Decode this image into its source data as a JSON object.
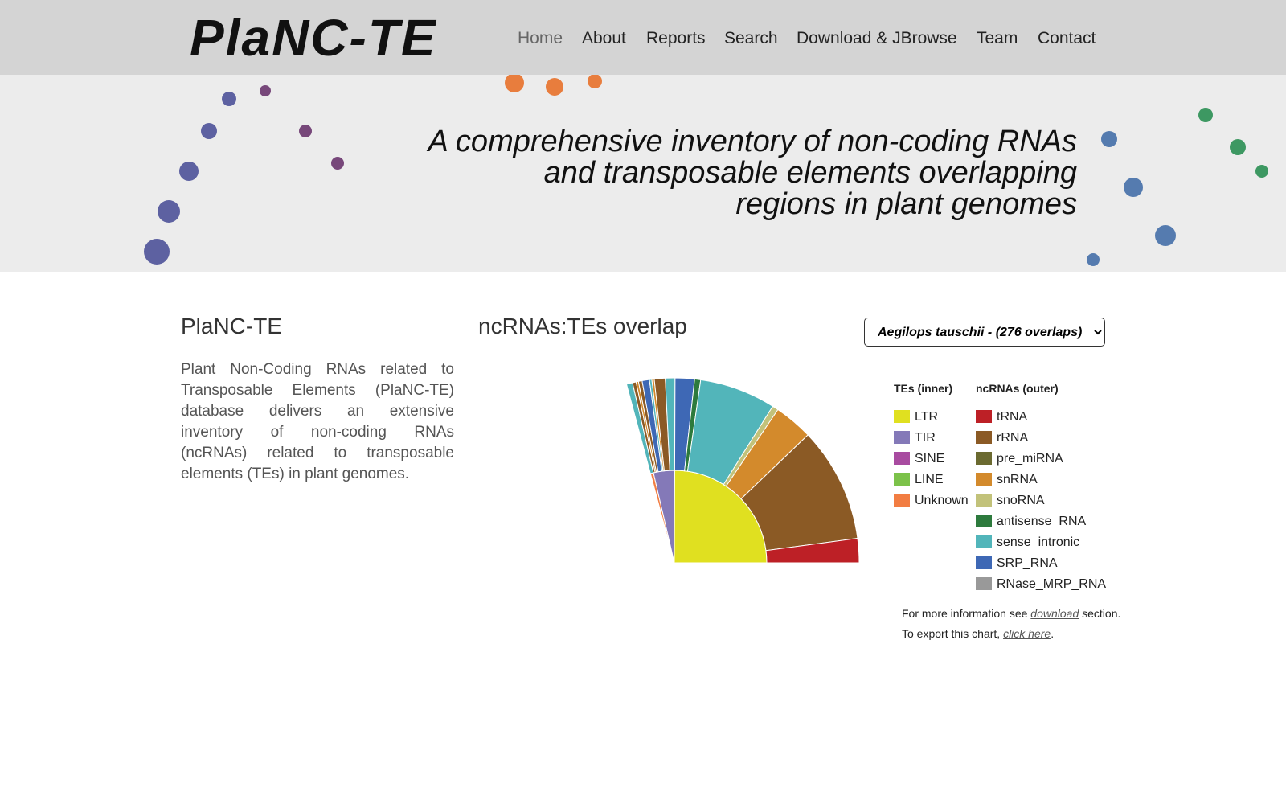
{
  "header": {
    "logo": "PlaNC-TE",
    "nav": [
      "Home",
      "About",
      "Reports",
      "Search",
      "Download & JBrowse",
      "Team",
      "Contact"
    ]
  },
  "hero": {
    "tagline": [
      "A comprehensive inventory of non-coding RNAs",
      "and transposable elements overlapping",
      "regions in plant genomes"
    ]
  },
  "sidebar": {
    "title": "PlaNC-TE",
    "text": "Plant Non-Coding RNAs related to Transposable Elements (PlaNC-TE) database delivers an extensive inventory of non-coding RNAs (ncRNAs) related to transposable elements (TEs) in plant genomes."
  },
  "chart_data": {
    "type": "sunburst",
    "title": "ncRNAs:TEs overlap",
    "selector": "Aegilops tauschii - (276 overlaps)",
    "inner_title": "TEs (inner)",
    "outer_title": "ncRNAs (outer)",
    "te_legend": [
      {
        "name": "LTR",
        "color": "#e0e020"
      },
      {
        "name": "TIR",
        "color": "#8479b8"
      },
      {
        "name": "SINE",
        "color": "#a84ba0"
      },
      {
        "name": "LINE",
        "color": "#7cc24a"
      },
      {
        "name": "Unknown",
        "color": "#f27d42"
      }
    ],
    "ncrna_legend": [
      {
        "name": "tRNA",
        "color": "#bd2026"
      },
      {
        "name": "rRNA",
        "color": "#8b5a25"
      },
      {
        "name": "pre_miRNA",
        "color": "#6b6a30"
      },
      {
        "name": "snRNA",
        "color": "#d38a2c"
      },
      {
        "name": "snoRNA",
        "color": "#c2c27a"
      },
      {
        "name": "antisense_RNA",
        "color": "#2d7a3d"
      },
      {
        "name": "sense_intronic",
        "color": "#52b5ba"
      },
      {
        "name": "SRP_RNA",
        "color": "#3e68b5"
      },
      {
        "name": "RNase_MRP_RNA",
        "color": "#999999"
      }
    ],
    "segments": [
      {
        "name": "Unknown",
        "value": 5,
        "children": [
          {
            "name": "sense_intronic",
            "value": 5
          }
        ]
      },
      {
        "name": "TIR",
        "value": 35,
        "children": [
          {
            "name": "rRNA",
            "value": 3
          },
          {
            "name": "snRNA",
            "value": 2
          },
          {
            "name": "rRNA",
            "value": 3
          },
          {
            "name": "SRP_RNA",
            "value": 6
          },
          {
            "name": "sense_intronic",
            "value": 2
          },
          {
            "name": "snRNA",
            "value": 2
          },
          {
            "name": "rRNA",
            "value": 9
          },
          {
            "name": "sense_intronic",
            "value": 8
          }
        ]
      },
      {
        "name": "LTR",
        "value": 236,
        "children": [
          {
            "name": "SRP_RNA",
            "value": 16
          },
          {
            "name": "antisense_RNA",
            "value": 5
          },
          {
            "name": "sense_intronic",
            "value": 63
          },
          {
            "name": "snoRNA",
            "value": 5
          },
          {
            "name": "snRNA",
            "value": 32
          },
          {
            "name": "rRNA",
            "value": 95
          },
          {
            "name": "tRNA",
            "value": 20
          }
        ]
      }
    ]
  },
  "info": {
    "line1": [
      "For more information see ",
      "download",
      " section."
    ],
    "line2": [
      "To export this chart, ",
      "click here",
      "."
    ]
  }
}
